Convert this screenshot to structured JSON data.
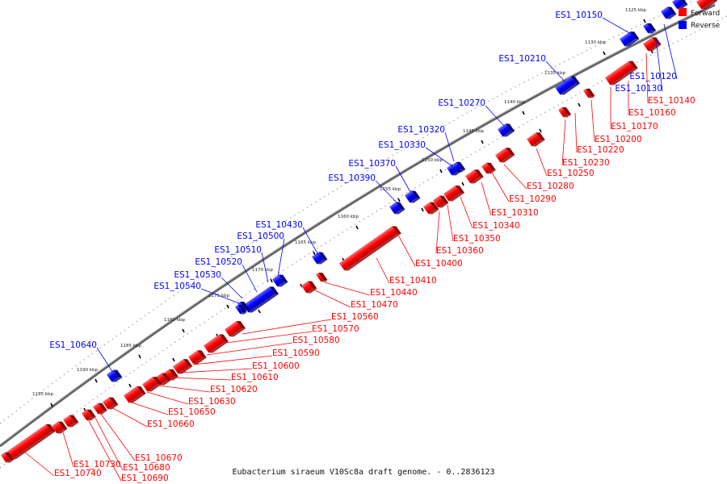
{
  "caption": "Eubacterium siraeum V10Sc8a draft genome. - 0..2836123",
  "legend": {
    "forward_label": "Forward",
    "reverse_label": "Reverse",
    "forward_color": "#ff0000",
    "reverse_color": "#0000ff"
  },
  "colors": {
    "forward": "#ff0000",
    "reverse": "#0000ff",
    "backbone": "#777777"
  },
  "ticks": [
    "1125 kbp",
    "1130 kbp",
    "1135 kbp",
    "1140 kbp",
    "1145 kbp",
    "1150 kbp",
    "1155 kbp",
    "1160 kbp",
    "1165 kbp",
    "1170 kbp",
    "1175 kbp",
    "1180 kbp",
    "1185 kbp",
    "1190 kbp",
    "1195 kbp"
  ],
  "reverse_genes": [
    "ES1_10120",
    "ES1_10130",
    "ES1_10150",
    "ES1_10210",
    "ES1_10270",
    "ES1_10320",
    "ES1_10330",
    "ES1_10370",
    "ES1_10390",
    "ES1_10430",
    "ES1_10500",
    "ES1_10510",
    "ES1_10520",
    "ES1_10530",
    "ES1_10540",
    "ES1_10640"
  ],
  "forward_genes": [
    "ES1_10140",
    "ES1_10160",
    "ES1_10170",
    "ES1_10200",
    "ES1_10220",
    "ES1_10230",
    "ES1_10250",
    "ES1_10280",
    "ES1_10290",
    "ES1_10310",
    "ES1_10340",
    "ES1_10350",
    "ES1_10360",
    "ES1_10400",
    "ES1_10410",
    "ES1_10440",
    "ES1_10470",
    "ES1_10560",
    "ES1_10570",
    "ES1_10580",
    "ES1_10590",
    "ES1_10600",
    "ES1_10610",
    "ES1_10620",
    "ES1_10630",
    "ES1_10650",
    "ES1_10660",
    "ES1_10670",
    "ES1_10680",
    "ES1_10690",
    "ES1_10730",
    "ES1_10740"
  ]
}
